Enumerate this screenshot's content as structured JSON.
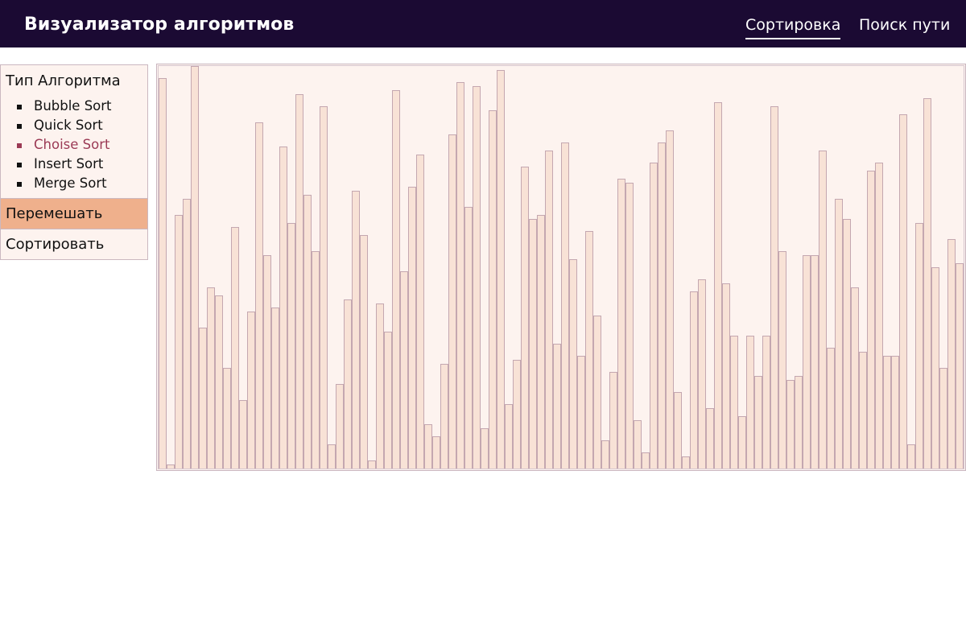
{
  "header": {
    "title": "Визуализатор алгоритмов",
    "nav": [
      {
        "label": "Сортировка",
        "active": true
      },
      {
        "label": "Поиск пути",
        "active": false
      }
    ]
  },
  "sidebar": {
    "heading": "Тип Алгоритма",
    "algorithms": [
      {
        "label": "Bubble Sort",
        "selected": false
      },
      {
        "label": "Quick Sort",
        "selected": false
      },
      {
        "label": "Choise Sort",
        "selected": true
      },
      {
        "label": "Insert Sort",
        "selected": false
      },
      {
        "label": "Merge Sort",
        "selected": false
      }
    ],
    "shuffle_label": "Перемешать",
    "sort_label": "Сортировать"
  },
  "colors": {
    "header_bg": "#1b0a33",
    "panel_bg": "#fdf3ef",
    "shuffle_bg": "#efb08c",
    "selected_text": "#9b3a55",
    "bar_fill": "#f8e2d6",
    "bar_border": "#c4a7b0"
  },
  "array_values": [
    97,
    1,
    63,
    67,
    100,
    35,
    45,
    43,
    25,
    60,
    17,
    39,
    86,
    53,
    40,
    80,
    61,
    93,
    68,
    54,
    90,
    6,
    21,
    42,
    69,
    58,
    2,
    41,
    34,
    94,
    49,
    70,
    78,
    11,
    8,
    26,
    83,
    96,
    65,
    95,
    10,
    89,
    99,
    16,
    27,
    75,
    62,
    63,
    79,
    31,
    81,
    52,
    28,
    59,
    38,
    7,
    24,
    72,
    71,
    12,
    4,
    76,
    81,
    84,
    19,
    3,
    44,
    47,
    15,
    91,
    46,
    33,
    13,
    33,
    23,
    33,
    90,
    54,
    22,
    23,
    53,
    53,
    79,
    30,
    67,
    62,
    45,
    29,
    74,
    76,
    28,
    28,
    88,
    6,
    61,
    92,
    50,
    25,
    57,
    51,
    33,
    50,
    29,
    92,
    38,
    9,
    5,
    66,
    60,
    7,
    57,
    92,
    50,
    9,
    50,
    33,
    50,
    57,
    93,
    58,
    28,
    53,
    56,
    55,
    93,
    66,
    74,
    57,
    73,
    60,
    96,
    53,
    63,
    90,
    81,
    14,
    29,
    42,
    14,
    47,
    50,
    92,
    43,
    18,
    68,
    55,
    95,
    77,
    82,
    44,
    7,
    64,
    62,
    75,
    91,
    50,
    92,
    9
  ]
}
